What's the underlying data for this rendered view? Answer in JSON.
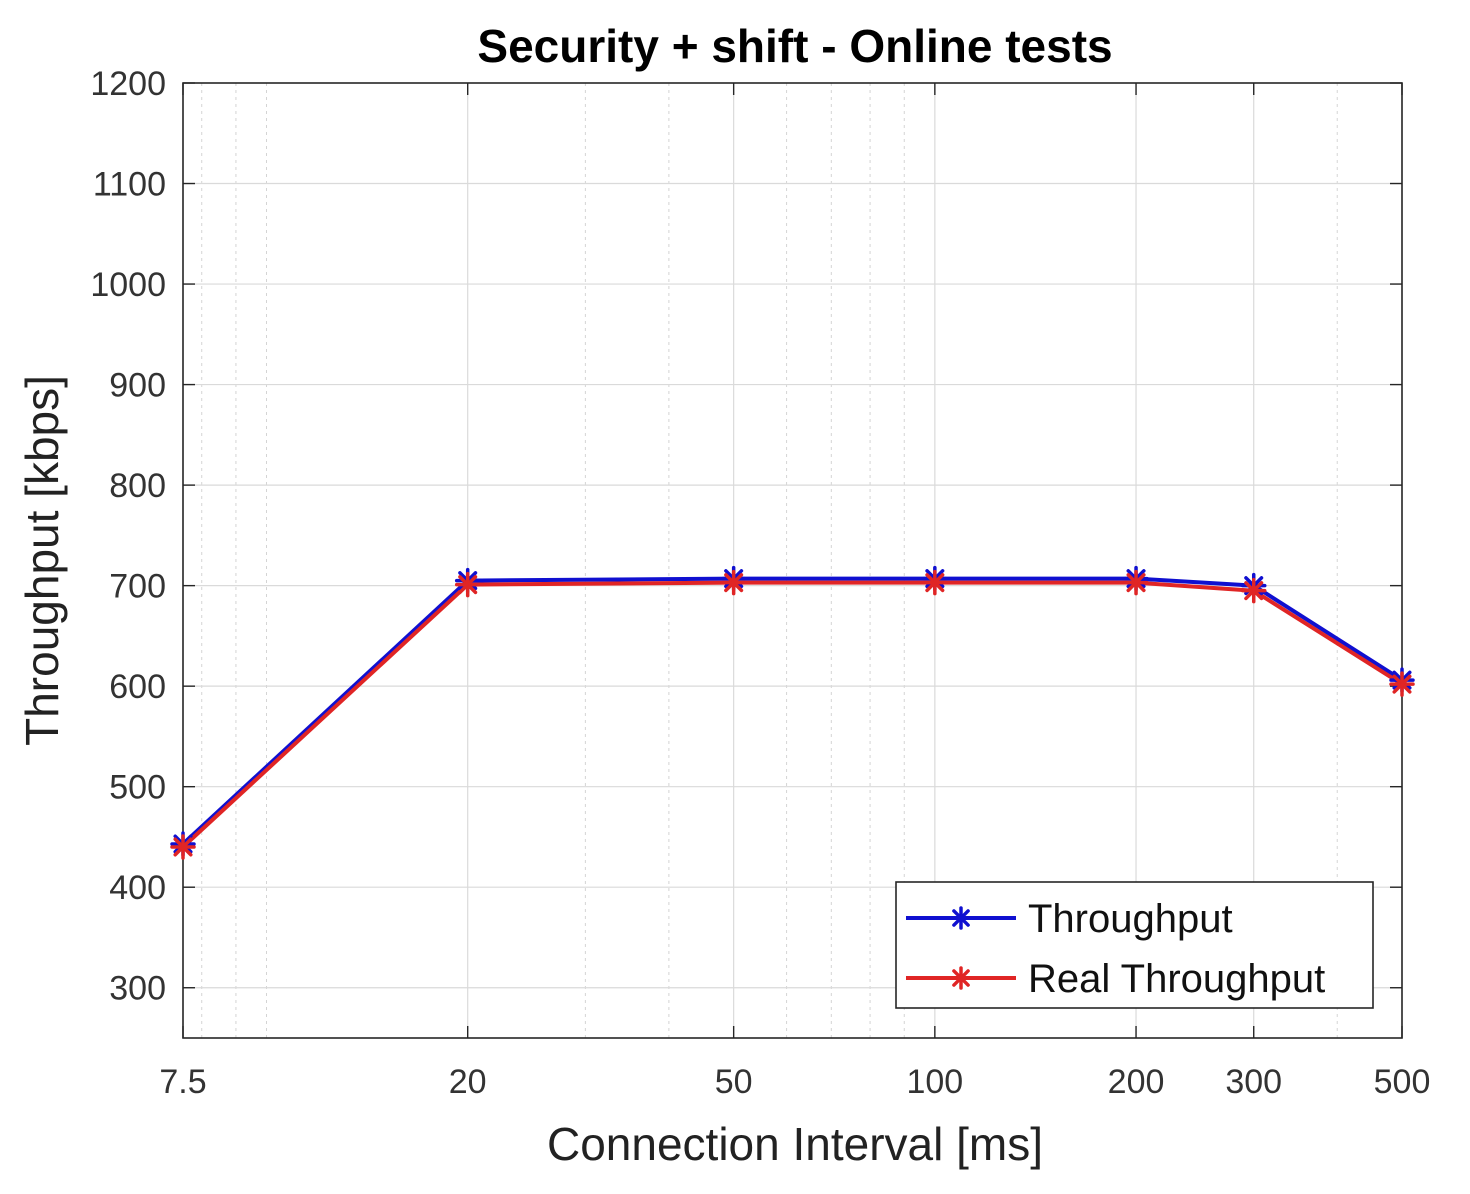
{
  "chart_data": {
    "type": "line",
    "title": "Security + shift - Online tests",
    "xlabel": "Connection Interval [ms]",
    "ylabel": "Throughput [kbps]",
    "xscale": "log",
    "xlim": [
      7.5,
      500
    ],
    "ylim": [
      250,
      1200
    ],
    "xticks": [
      7.5,
      20,
      50,
      100,
      200,
      300,
      500
    ],
    "xtick_labels": [
      "7.5",
      "20",
      "50",
      "100",
      "200",
      "300",
      "500"
    ],
    "yticks": [
      300,
      400,
      500,
      600,
      700,
      800,
      900,
      1000,
      1100,
      1200
    ],
    "ytick_labels": [
      "300",
      "400",
      "500",
      "600",
      "700",
      "800",
      "900",
      "1000",
      "1100",
      "1200"
    ],
    "grid": true,
    "minor_grid": true,
    "legend_position": "bottom-right",
    "x": [
      7.5,
      20,
      50,
      100,
      200,
      300,
      500
    ],
    "series": [
      {
        "name": "Throughput",
        "color": "#1010d0",
        "marker": "asterisk",
        "values": [
          443,
          705,
          707,
          707,
          707,
          700,
          606
        ]
      },
      {
        "name": "Real Throughput",
        "color": "#e02525",
        "marker": "asterisk",
        "values": [
          440,
          701,
          703,
          703,
          703,
          695,
          602
        ]
      }
    ]
  }
}
